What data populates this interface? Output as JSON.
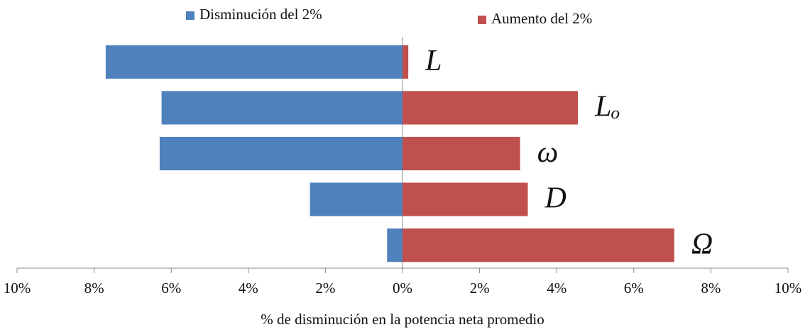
{
  "chart_data": {
    "type": "bar",
    "orientation": "horizontal",
    "categories": [
      "L",
      "Lₒ",
      "ω",
      "D",
      "Ω"
    ],
    "series": [
      {
        "name": "Disminución del 2%",
        "color": "#4f81bd",
        "values": [
          -7.7,
          -6.25,
          -6.3,
          -2.4,
          -0.4
        ]
      },
      {
        "name": "Aumento del 2%",
        "color": "#c0504d",
        "values": [
          0.15,
          4.55,
          3.05,
          3.25,
          7.05
        ]
      }
    ],
    "xlabel": "% de disminución en la potencia neta promedio",
    "xlim": [
      -10,
      10
    ],
    "xticks": [
      {
        "value": -10,
        "label": "10%"
      },
      {
        "value": -8,
        "label": "8%"
      },
      {
        "value": -6,
        "label": "6%"
      },
      {
        "value": -4,
        "label": "4%"
      },
      {
        "value": -2,
        "label": "2%"
      },
      {
        "value": 0,
        "label": "0%"
      },
      {
        "value": 2,
        "label": "2%"
      },
      {
        "value": 4,
        "label": "4%"
      },
      {
        "value": 6,
        "label": "6%"
      },
      {
        "value": 8,
        "label": "8%"
      },
      {
        "value": 10,
        "label": "10%"
      }
    ],
    "legend": "top",
    "grid": false
  }
}
